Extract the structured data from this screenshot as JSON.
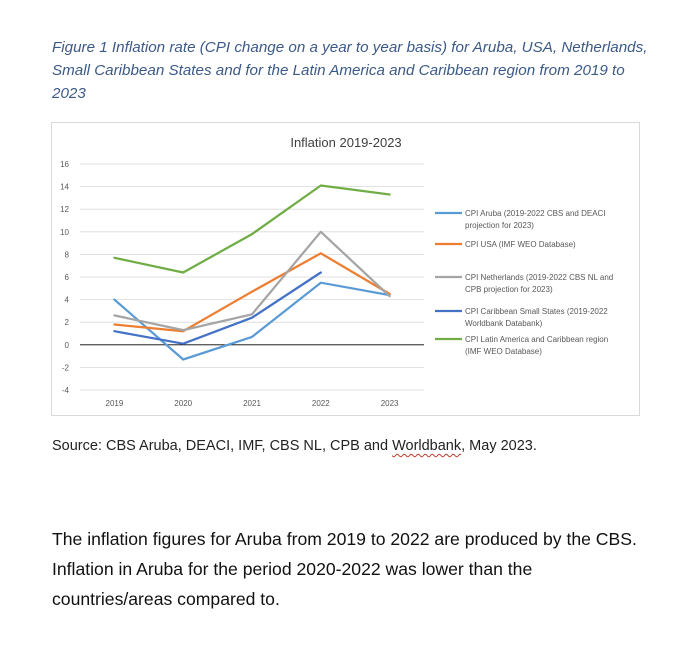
{
  "caption": "Figure 1 Inflation rate (CPI change on a year to year basis) for Aruba, USA, Netherlands, Small Caribbean States and for the Latin America and Caribbean region from 2019 to 2023",
  "source": {
    "prefix": "Source: CBS Aruba, DEACI, IMF, CBS NL, CPB and ",
    "squiggle": "Worldbank",
    "suffix": ", May 2023."
  },
  "body_text": "The inflation figures for Aruba from 2019 to 2022 are produced by the CBS. Inflation in Aruba for the period 2020-2022 was lower than the countries/areas compared to.",
  "chart_data": {
    "type": "line",
    "title": "Inflation 2019-2023",
    "xlabel": "",
    "ylabel": "",
    "categories": [
      "2019",
      "2020",
      "2021",
      "2022",
      "2023"
    ],
    "ylim": [
      -4,
      16
    ],
    "yticks": [
      16,
      14,
      12,
      10,
      8,
      6,
      4,
      2,
      0,
      -2,
      -4
    ],
    "grid": true,
    "legend_position": "right",
    "series": [
      {
        "name": "CPI Aruba (2019-2022 CBS and DEACI projection for 2023)",
        "legend_lines": [
          "CPI Aruba (2019-2022 CBS and DEACI",
          "projection for 2023)"
        ],
        "color": "#5b9bd5",
        "values": [
          4.0,
          -1.3,
          0.7,
          5.5,
          4.4
        ]
      },
      {
        "name": "CPI USA (IMF WEO Database)",
        "legend_lines": [
          "CPI USA (IMF WEO Database)"
        ],
        "color": "#ed7d31",
        "values": [
          1.8,
          1.2,
          4.7,
          8.1,
          4.5
        ]
      },
      {
        "name": "CPI Netherlands (2019-2022 CBS NL and CPB projection for 2023)",
        "legend_lines": [
          "CPI Netherlands (2019-2022 CBS NL and",
          "CPB projection for 2023)"
        ],
        "color": "#a5a5a5",
        "values": [
          2.6,
          1.3,
          2.7,
          10.0,
          4.3
        ]
      },
      {
        "name": "CPI Caribbean Small States (2019-2022 Worldbank Databank)",
        "legend_lines": [
          "CPI Caribbean Small States (2019-2022",
          "Worldbank Databank)"
        ],
        "color": "#4472c4",
        "values": [
          1.2,
          0.1,
          2.4,
          6.4,
          null
        ]
      },
      {
        "name": "CPI Latin America and Caribbean region (IMF WEO Database)",
        "legend_lines": [
          "CPI Latin America and Caribbean region",
          "(IMF WEO Database)"
        ],
        "color": "#70ad47",
        "values": [
          7.7,
          6.4,
          9.8,
          14.1,
          13.3
        ]
      }
    ]
  }
}
